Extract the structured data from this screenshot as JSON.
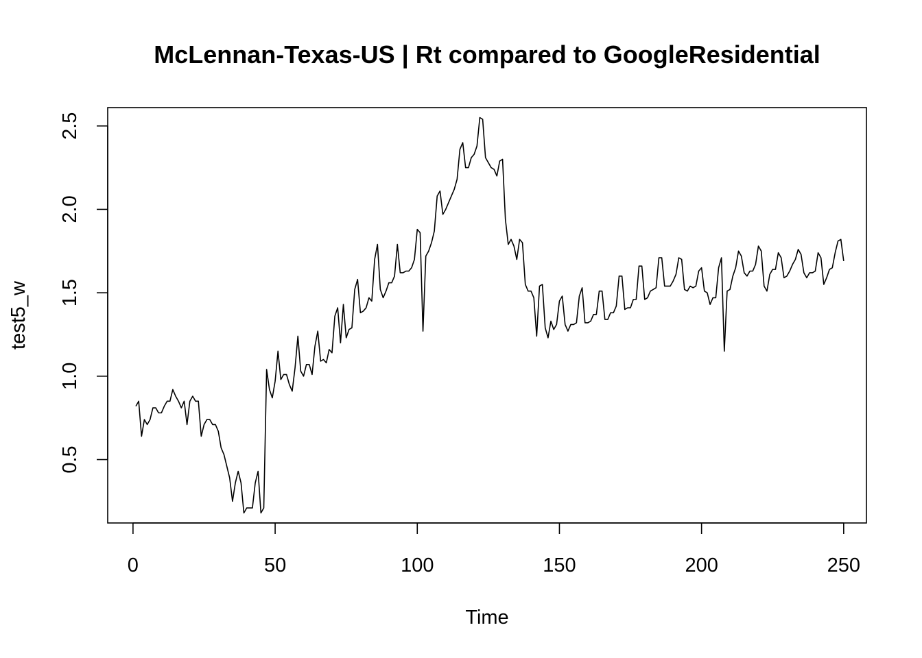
{
  "chart_data": {
    "type": "line",
    "title": "McLennan-Texas-US | Rt compared to GoogleResidential",
    "xlabel": "Time",
    "ylabel": "test5_w",
    "xlim": [
      -8.9,
      258
    ],
    "ylim": [
      0.12,
      2.61
    ],
    "xticks": [
      0,
      50,
      100,
      150,
      200,
      250
    ],
    "yticks": [
      0.5,
      1.0,
      1.5,
      2.0,
      2.5
    ],
    "xtick_labels": [
      "0",
      "50",
      "100",
      "150",
      "200",
      "250"
    ],
    "ytick_labels": [
      "0.5",
      "1.0",
      "1.5",
      "2.0",
      "2.5"
    ],
    "grid": false,
    "legend": "none",
    "line_color": "#000000",
    "series": [
      {
        "x_start": 1,
        "values": [
          0.82,
          0.85,
          0.64,
          0.74,
          0.71,
          0.74,
          0.81,
          0.81,
          0.78,
          0.78,
          0.82,
          0.85,
          0.85,
          0.92,
          0.88,
          0.85,
          0.81,
          0.85,
          0.71,
          0.85,
          0.88,
          0.85,
          0.85,
          0.64,
          0.71,
          0.74,
          0.74,
          0.71,
          0.71,
          0.67,
          0.57,
          0.53,
          0.46,
          0.39,
          0.25,
          0.36,
          0.43,
          0.36,
          0.18,
          0.21,
          0.21,
          0.21,
          0.36,
          0.43,
          0.18,
          0.21,
          1.04,
          0.92,
          0.87,
          0.97,
          1.15,
          0.98,
          1.01,
          1.01,
          0.95,
          0.91,
          1.05,
          1.24,
          1.03,
          1.0,
          1.07,
          1.07,
          1.01,
          1.18,
          1.27,
          1.09,
          1.1,
          1.08,
          1.16,
          1.14,
          1.36,
          1.41,
          1.2,
          1.43,
          1.23,
          1.28,
          1.29,
          1.52,
          1.58,
          1.38,
          1.39,
          1.41,
          1.47,
          1.45,
          1.7,
          1.79,
          1.52,
          1.47,
          1.51,
          1.56,
          1.56,
          1.6,
          1.79,
          1.62,
          1.62,
          1.63,
          1.63,
          1.65,
          1.7,
          1.88,
          1.86,
          1.27,
          1.72,
          1.75,
          1.8,
          1.87,
          2.08,
          2.11,
          1.97,
          2.0,
          2.04,
          2.08,
          2.12,
          2.18,
          2.36,
          2.4,
          2.25,
          2.25,
          2.31,
          2.33,
          2.38,
          2.55,
          2.54,
          2.31,
          2.28,
          2.25,
          2.24,
          2.2,
          2.29,
          2.3,
          1.94,
          1.79,
          1.82,
          1.78,
          1.7,
          1.82,
          1.8,
          1.55,
          1.51,
          1.51,
          1.47,
          1.24,
          1.54,
          1.55,
          1.29,
          1.23,
          1.33,
          1.28,
          1.31,
          1.45,
          1.48,
          1.31,
          1.27,
          1.31,
          1.31,
          1.32,
          1.48,
          1.53,
          1.32,
          1.32,
          1.33,
          1.37,
          1.37,
          1.51,
          1.51,
          1.34,
          1.34,
          1.38,
          1.38,
          1.42,
          1.6,
          1.6,
          1.4,
          1.41,
          1.41,
          1.46,
          1.46,
          1.66,
          1.66,
          1.46,
          1.47,
          1.51,
          1.52,
          1.53,
          1.71,
          1.71,
          1.54,
          1.54,
          1.54,
          1.57,
          1.61,
          1.71,
          1.7,
          1.52,
          1.51,
          1.54,
          1.53,
          1.54,
          1.63,
          1.65,
          1.51,
          1.5,
          1.43,
          1.47,
          1.47,
          1.65,
          1.71,
          1.15,
          1.51,
          1.52,
          1.6,
          1.65,
          1.75,
          1.72,
          1.62,
          1.6,
          1.63,
          1.63,
          1.67,
          1.78,
          1.75,
          1.54,
          1.51,
          1.61,
          1.64,
          1.64,
          1.74,
          1.71,
          1.59,
          1.6,
          1.63,
          1.67,
          1.7,
          1.76,
          1.73,
          1.62,
          1.59,
          1.62,
          1.62,
          1.63,
          1.74,
          1.71,
          1.55,
          1.59,
          1.64,
          1.65,
          1.74,
          1.81,
          1.82,
          1.69
        ]
      }
    ]
  }
}
